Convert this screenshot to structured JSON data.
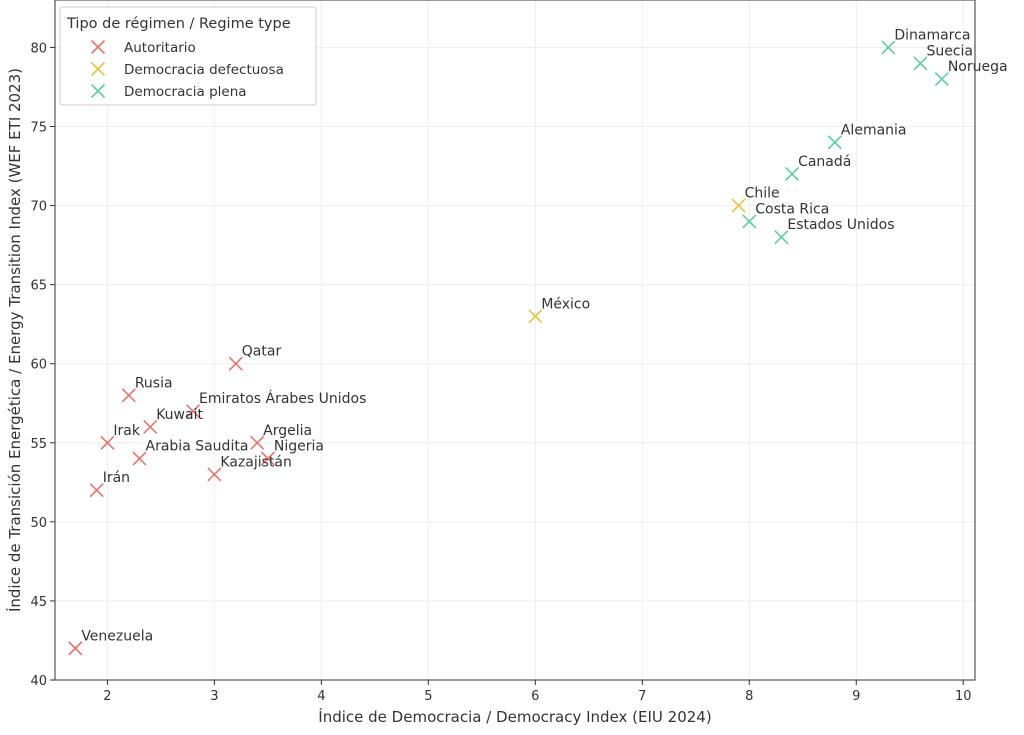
{
  "chart_data": {
    "type": "scatter",
    "title": "",
    "xlabel": "Índice de Democracia / Democracy Index (EIU 2024)",
    "ylabel": "Índice de Transición Energética / Energy Transition Index (WEF ETI 2023)",
    "xlim": [
      1.51,
      10.11
    ],
    "ylim": [
      40,
      83
    ],
    "xticks": [
      2,
      3,
      4,
      5,
      6,
      7,
      8,
      9,
      10
    ],
    "yticks": [
      40,
      45,
      50,
      55,
      60,
      65,
      70,
      75,
      80
    ],
    "grid": true,
    "legend": {
      "title": "Tipo de régimen / Regime type",
      "placement": "top-left",
      "entries": [
        {
          "name": "Autoritario",
          "color": "#e8746b"
        },
        {
          "name": "Democracia defectuosa",
          "color": "#e6c540"
        },
        {
          "name": "Democracia plena",
          "color": "#5ccf9c"
        }
      ]
    },
    "points": [
      {
        "label": "Dinamarca",
        "x": 9.3,
        "y": 80,
        "group": 2
      },
      {
        "label": "Suecia",
        "x": 9.6,
        "y": 79,
        "group": 2
      },
      {
        "label": "Noruega",
        "x": 9.8,
        "y": 78,
        "group": 2
      },
      {
        "label": "Alemania",
        "x": 8.8,
        "y": 74,
        "group": 2
      },
      {
        "label": "Canadá",
        "x": 8.4,
        "y": 72,
        "group": 2
      },
      {
        "label": "Chile",
        "x": 7.9,
        "y": 70,
        "group": 1
      },
      {
        "label": "Costa Rica",
        "x": 8.0,
        "y": 69,
        "group": 2
      },
      {
        "label": "Estados Unidos",
        "x": 8.3,
        "y": 68,
        "group": 2
      },
      {
        "label": "México",
        "x": 6.0,
        "y": 63,
        "group": 1
      },
      {
        "label": "Qatar",
        "x": 3.2,
        "y": 60,
        "group": 0
      },
      {
        "label": "Rusia",
        "x": 2.2,
        "y": 58,
        "group": 0
      },
      {
        "label": "Emiratos Árabes Unidos",
        "x": 2.8,
        "y": 57,
        "group": 0
      },
      {
        "label": "Kuwait",
        "x": 2.4,
        "y": 56,
        "group": 0
      },
      {
        "label": "Irak",
        "x": 2.0,
        "y": 55,
        "group": 0
      },
      {
        "label": "Arabia Saudita",
        "x": 2.3,
        "y": 54,
        "group": 0
      },
      {
        "label": "Argelia",
        "x": 3.4,
        "y": 55,
        "group": 0
      },
      {
        "label": "Nigeria",
        "x": 3.5,
        "y": 54,
        "group": 0
      },
      {
        "label": "Kazajistán",
        "x": 3.0,
        "y": 53,
        "group": 0
      },
      {
        "label": "Irán",
        "x": 1.9,
        "y": 52,
        "group": 0
      },
      {
        "label": "Venezuela",
        "x": 1.7,
        "y": 42,
        "group": 0
      }
    ]
  }
}
